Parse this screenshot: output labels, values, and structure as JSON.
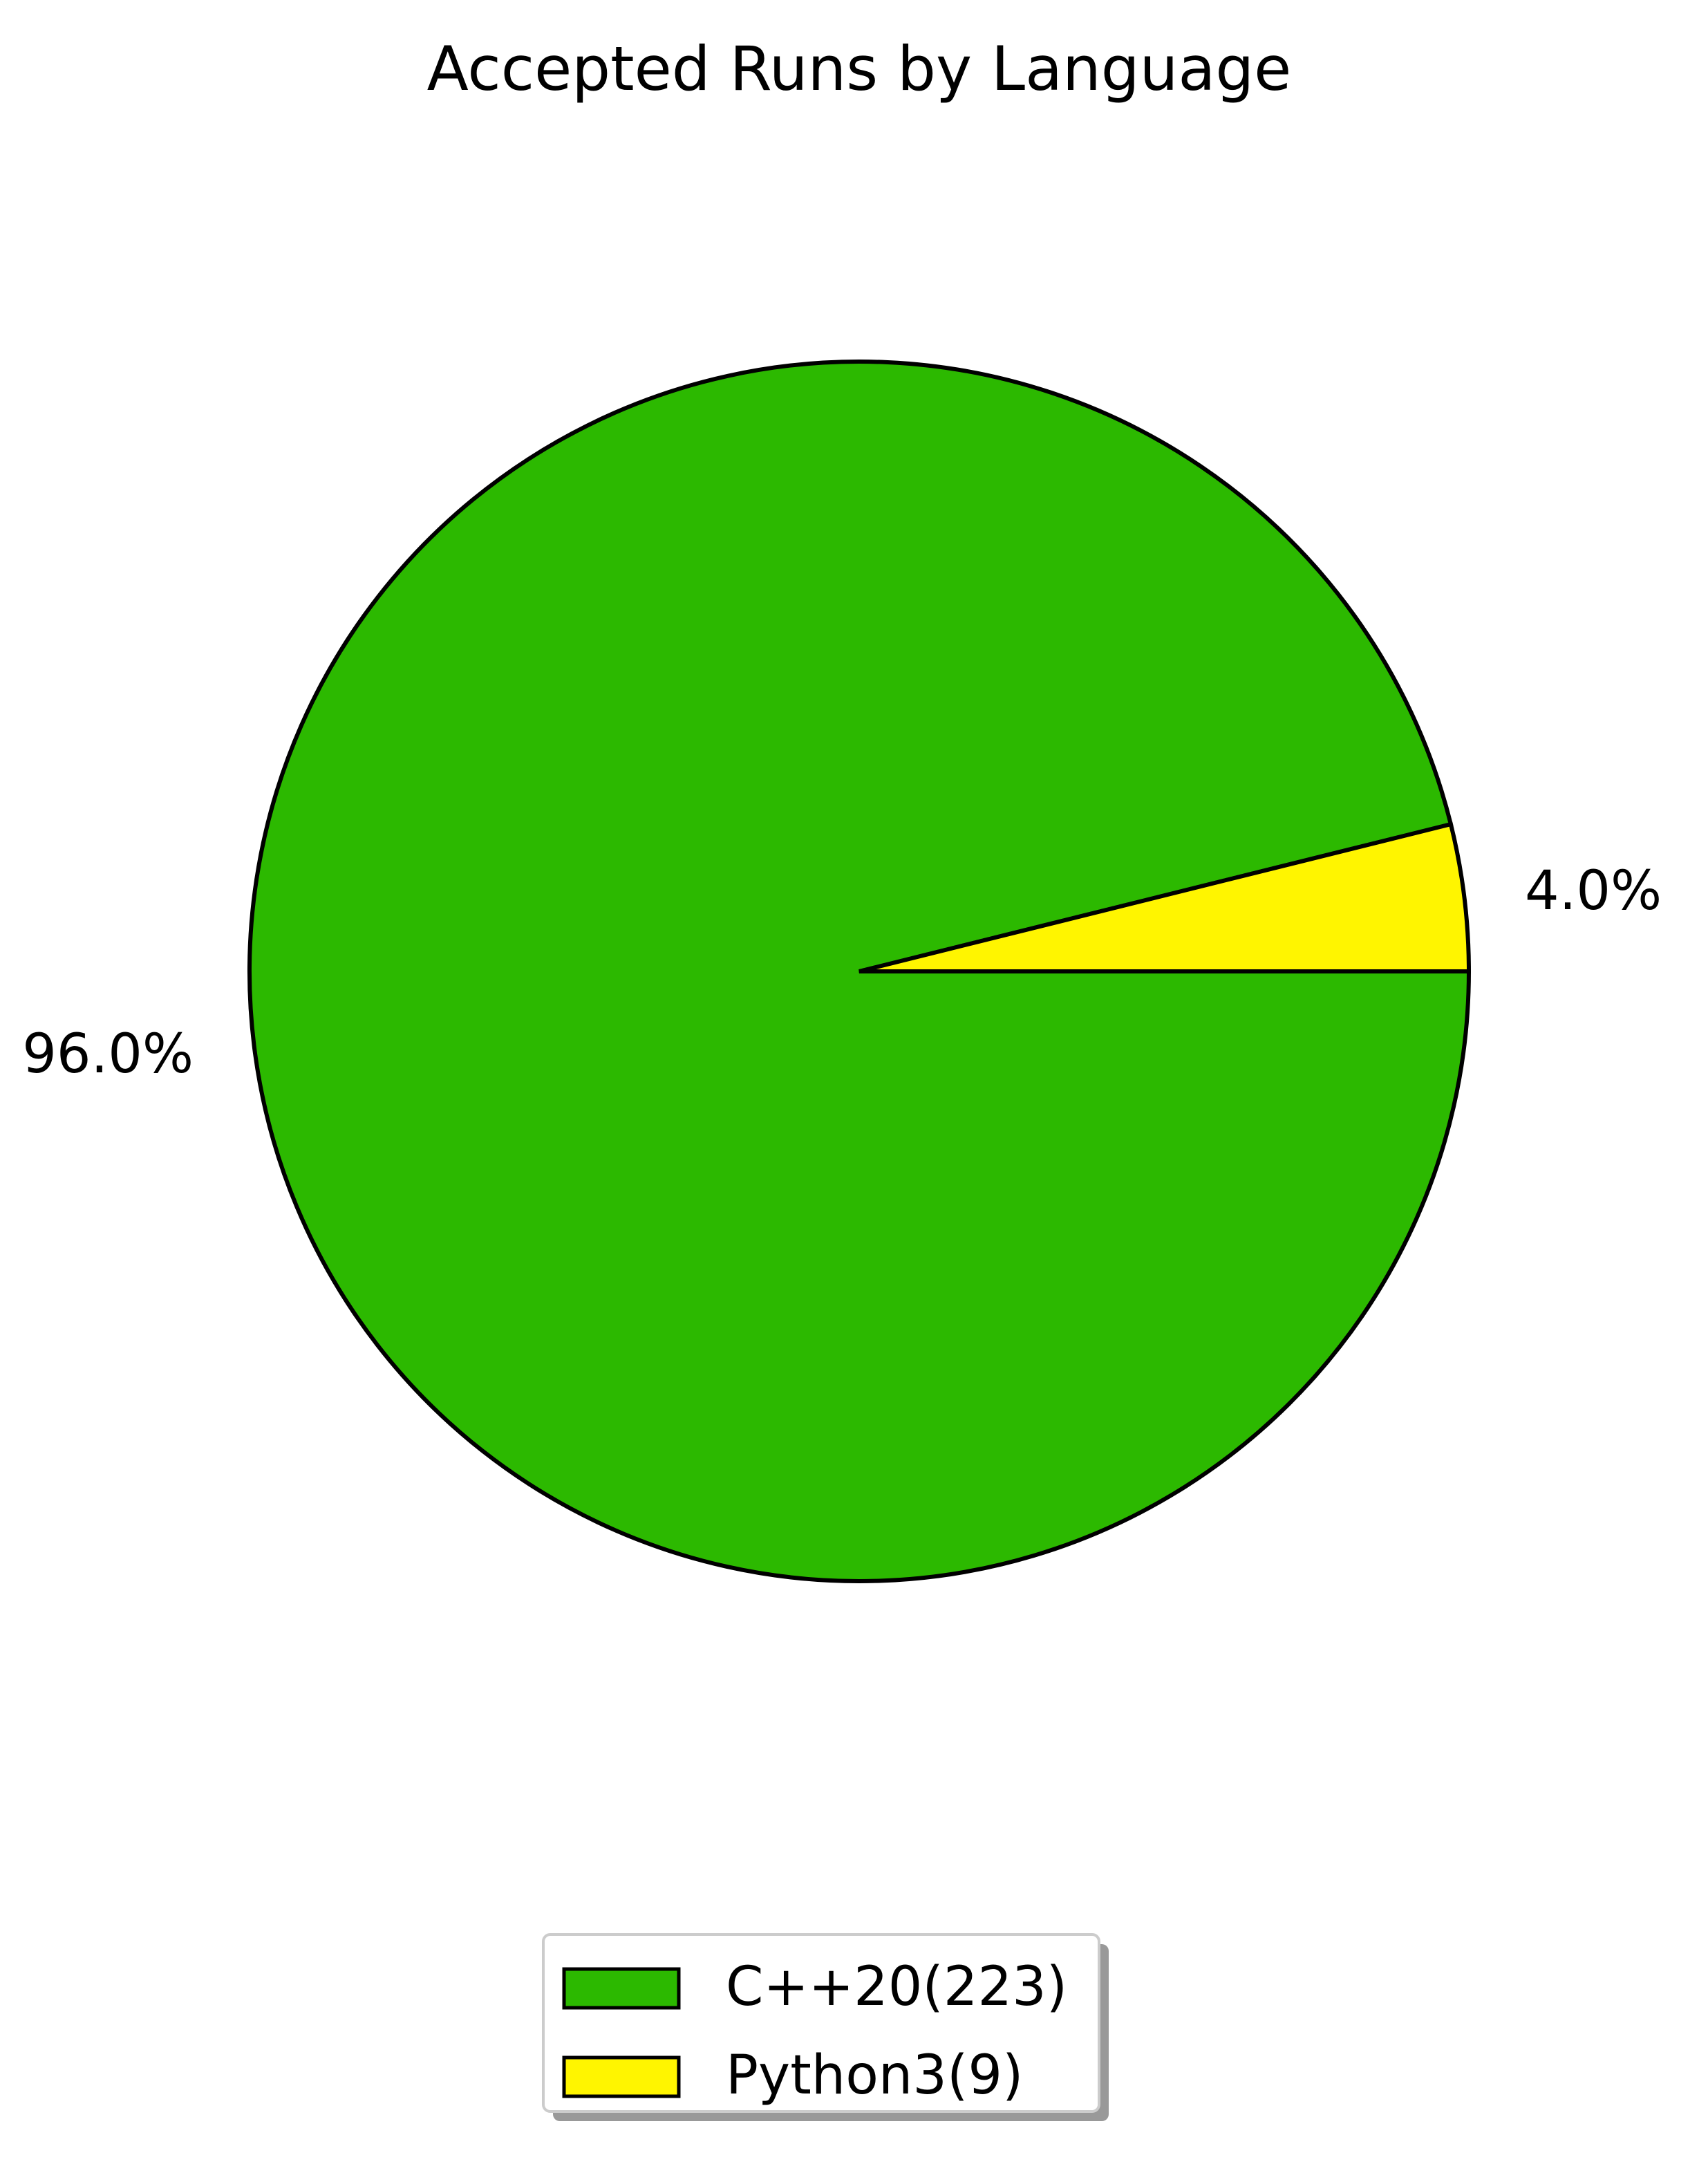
{
  "chart_data": {
    "type": "pie",
    "title": "Accepted Runs by Language",
    "slices": [
      {
        "label": "C++20(223)",
        "value": 223,
        "percent_label": "96.0%",
        "color": "#2CB900"
      },
      {
        "label": "Python3(9)",
        "value": 9,
        "percent_label": "4.0%",
        "color": "#FFF500"
      }
    ],
    "start_angle_deg": 0,
    "direction": "clockwise",
    "legend": {
      "position": "bottom-center",
      "entries": [
        "C++20(223)",
        "Python3(9)"
      ]
    },
    "edge_color": "#000000"
  }
}
